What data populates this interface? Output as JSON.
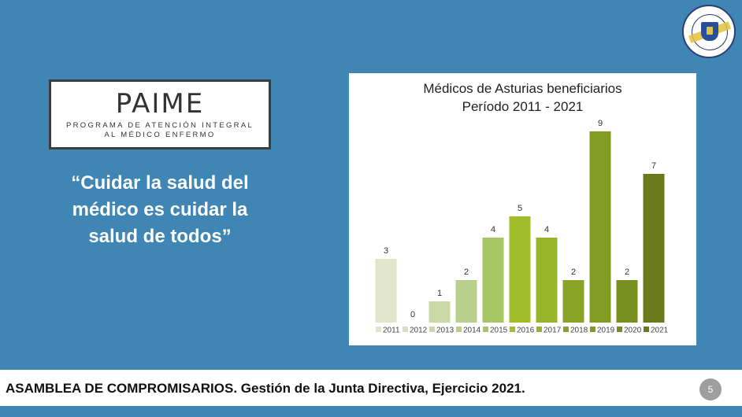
{
  "slide": {
    "paime_title": "PAIME",
    "paime_subtitle_1": "PROGRAMA DE ATENCIÓN INTEGRAL",
    "paime_subtitle_2": "AL MÉDICO ENFERMO",
    "quote_line_1": "“Cuidar la salud del",
    "quote_line_2": "médico es cuidar la",
    "quote_line_3": "salud de todos”",
    "footer": "ASAMBLEA DE COMPROMISARIOS. Gestión de la Junta Directiva, Ejercicio 2021.",
    "page_number": "5",
    "logo_icon": "college-seal-icon",
    "colors": {
      "background": "#3f86b4",
      "footer_bg": "#ffffff",
      "page_badge": "#9e9e9e"
    }
  },
  "chart_data": {
    "type": "bar",
    "title_line_1": "Médicos de Asturias beneficiarios",
    "title_line_2": "Período 2011 - 2021",
    "categories": [
      "2011",
      "2012",
      "2013",
      "2014",
      "2015",
      "2016",
      "2017",
      "2018",
      "2019",
      "2020",
      "2021"
    ],
    "values": [
      3,
      0,
      1,
      2,
      4,
      5,
      4,
      2,
      9,
      2,
      7
    ],
    "colors": [
      "#e2e6cb",
      "#d8e1bf",
      "#cbd9a6",
      "#b8d08c",
      "#a7c666",
      "#a2bd2a",
      "#97b529",
      "#88a327",
      "#819c23",
      "#768f1f",
      "#6a7a1d"
    ],
    "ylim": [
      0,
      9
    ],
    "legend_position": "bottom",
    "grid": false,
    "data_labels": true
  }
}
